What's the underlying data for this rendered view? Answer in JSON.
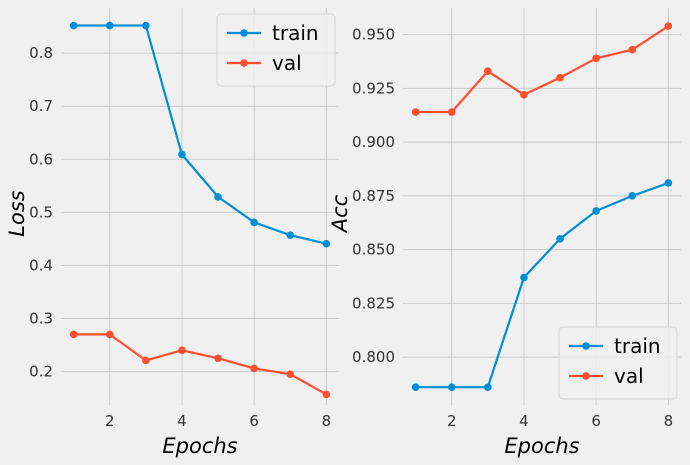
{
  "chart_data": [
    {
      "type": "line",
      "xlabel": "Epochs",
      "ylabel": "Loss",
      "x": [
        1,
        2,
        3,
        4,
        5,
        6,
        7,
        8
      ],
      "xticks": [
        2,
        4,
        6,
        8
      ],
      "xlim": [
        0.65,
        8.35
      ],
      "ylim": [
        0.137,
        0.885
      ],
      "yticks": [
        0.2,
        0.3,
        0.4,
        0.5,
        0.6,
        0.7,
        0.8
      ],
      "grid": true,
      "legend_position": "top-right",
      "series": [
        {
          "name": "train",
          "color": "#008fd5",
          "values": [
            0.852,
            0.852,
            0.852,
            0.609,
            0.529,
            0.481,
            0.457,
            0.441
          ]
        },
        {
          "name": "val",
          "color": "#fc4f30",
          "values": [
            0.27,
            0.27,
            0.221,
            0.24,
            0.225,
            0.206,
            0.195,
            0.157
          ]
        }
      ]
    },
    {
      "type": "line",
      "xlabel": "Epochs",
      "ylabel": "Acc",
      "x": [
        1,
        2,
        3,
        4,
        5,
        6,
        7,
        8
      ],
      "xticks": [
        2,
        4,
        6,
        8
      ],
      "xlim": [
        0.65,
        8.35
      ],
      "ylim": [
        0.7777,
        0.9624
      ],
      "yticks": [
        0.8,
        0.825,
        0.85,
        0.875,
        0.9,
        0.925,
        0.95
      ],
      "ytick_labels": [
        "0.800",
        "0.825",
        "0.850",
        "0.875",
        "0.900",
        "0.925",
        "0.950"
      ],
      "grid": true,
      "legend_position": "bottom-right",
      "series": [
        {
          "name": "train",
          "color": "#008fd5",
          "values": [
            0.786,
            0.786,
            0.786,
            0.837,
            0.855,
            0.868,
            0.875,
            0.881
          ]
        },
        {
          "name": "val",
          "color": "#fc4f30",
          "values": [
            0.914,
            0.914,
            0.933,
            0.922,
            0.93,
            0.939,
            0.943,
            0.954
          ]
        }
      ]
    }
  ]
}
